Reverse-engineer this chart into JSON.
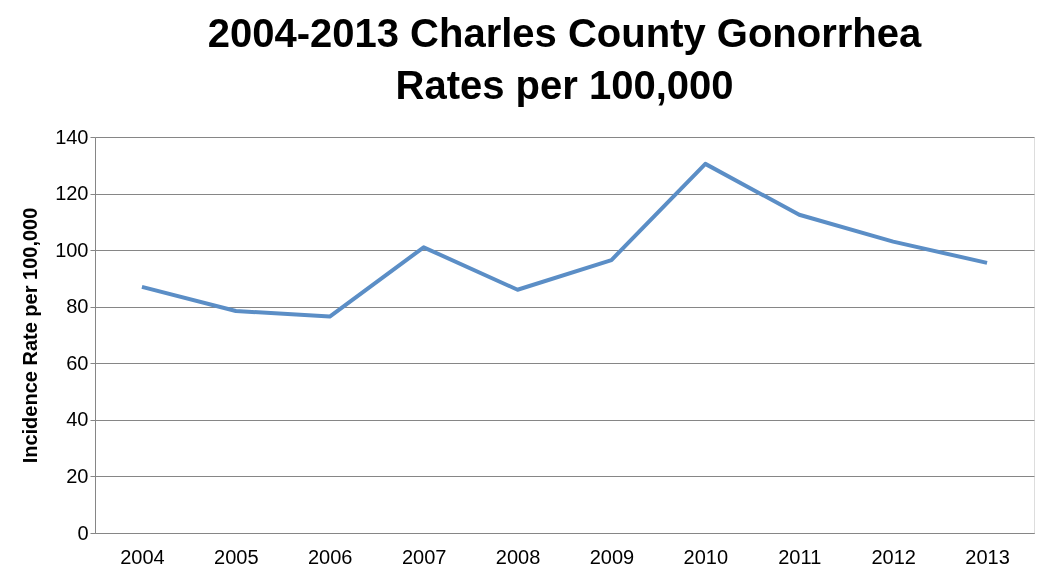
{
  "chart_data": {
    "type": "line",
    "title": "2004-2013 Charles County Gonorrhea Rates per 100,000",
    "ylabel": "Incidence Rate per 100,000",
    "categories": [
      "2004",
      "2005",
      "2006",
      "2007",
      "2008",
      "2009",
      "2010",
      "2011",
      "2012",
      "2013"
    ],
    "series": [
      {
        "color": "#5b8ec6",
        "values": [
          87,
          78.5,
          76.5,
          101,
          86,
          96.5,
          130.5,
          112.5,
          103,
          95.5
        ]
      }
    ],
    "ylim": [
      0,
      140
    ],
    "yticks": [
      0,
      20,
      40,
      60,
      80,
      100,
      120,
      140
    ],
    "grid": "y",
    "marker": "none",
    "line_style": "solid"
  }
}
